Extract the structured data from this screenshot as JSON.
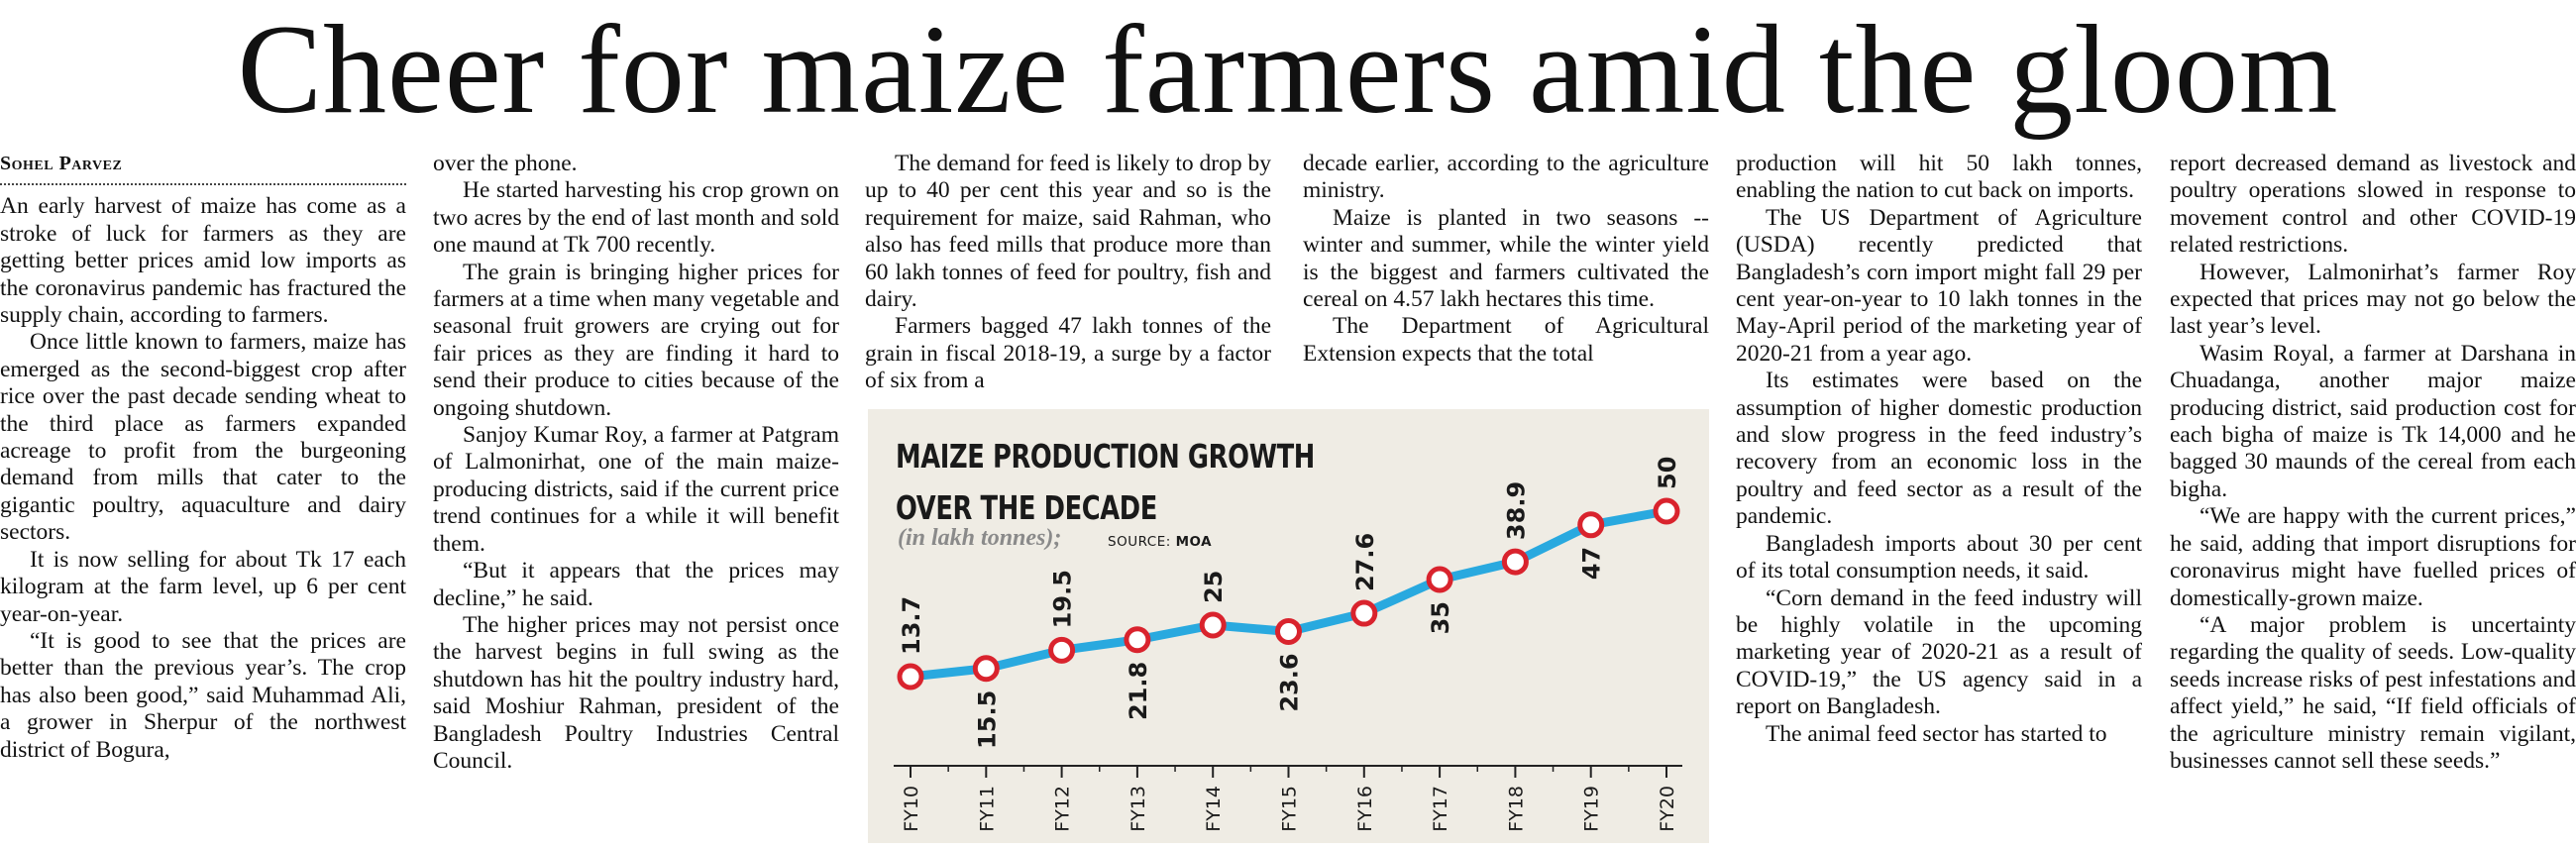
{
  "headline": "Cheer for maize farmers amid the gloom",
  "byline": "Sohel Parvez",
  "columns": {
    "col1": [
      "An early harvest of maize has come as a stroke of luck for farmers as they are getting better prices amid low imports as the coronavirus pandemic has fractured the supply chain, according to farmers.",
      "Once little known to farmers, maize has emerged as the second-biggest crop after rice over the past decade sending wheat to the third place as farmers expanded acreage to profit from the burgeoning demand from mills that cater to the gigantic poultry, aquaculture and dairy sectors.",
      "It is now selling for about Tk 17 each kilogram at the farm level, up 6 per cent year-on-year.",
      "“It is good to see that the prices are better than the previous year’s. The crop has also been good,” said Muhammad Ali, a grower in Sherpur of the northwest district of Bogura,"
    ],
    "col2": [
      "over the phone.",
      "He started harvesting his crop grown on two acres by the end of last month and sold one maund at Tk 700 recently.",
      "The grain is bringing higher prices for farmers at a time when many vegetable and seasonal fruit growers are crying out for fair prices as they are finding it hard to send their produce to cities because of the ongoing shutdown.",
      "Sanjoy Kumar Roy, a farmer at Patgram of Lalmonirhat, one of the main maize-producing districts, said if the current price trend continues for a while it will benefit them.",
      "“But it appears that the prices may decline,” he said.",
      "The higher prices may not persist once the harvest begins in full swing as the shutdown has hit the poultry industry hard, said Moshiur Rahman, president of the Bangladesh Poultry Industries Central Council."
    ],
    "col3": [
      "The demand for feed is likely to drop by up to 40 per cent this year and so is the requirement for maize, said Rahman, who also has feed mills that produce more than 60 lakh tonnes of feed for poultry, fish and dairy.",
      "Farmers bagged 47 lakh tonnes of the grain in fiscal 2018-19, a surge by a factor of six from a"
    ],
    "col4": [
      "decade earlier, according to the agriculture ministry.",
      "Maize is planted in two seasons -- winter and summer, while the winter yield is the biggest and farmers cultivated the cereal on 4.57 lakh hectares this time.",
      "The Department of Agricultural Extension expects that the total"
    ],
    "col5": [
      "production will hit 50 lakh tonnes, enabling the nation to cut back on imports.",
      "The US Department of Agriculture (USDA) recently predicted that Bangladesh’s corn import might fall 29 per cent year-on-year to 10 lakh tonnes in the May-April period of the marketing year of 2020-21 from a year ago.",
      "Its estimates were based on the assumption of higher domestic production and slow progress in the feed industry’s recovery from an economic loss in the poultry and feed sector as a result of the pandemic.",
      "Bangladesh imports about 30 per cent of its total consumption needs, it said.",
      "“Corn demand in the feed industry will be highly volatile in the upcoming marketing year of 2020-21 as a result of COVID-19,” the US agency said in a report on Bangladesh.",
      "The animal feed sector has started to"
    ],
    "col6": [
      "report decreased demand as livestock and poultry operations slowed in response to movement control and other COVID-19 related restrictions.",
      "However, Lalmonirhat’s farmer Roy expected that prices may not go below the last year’s level.",
      "Wasim Royal, a farmer at Darshana in Chuadanga, another major maize producing district, said production cost for each bigha of maize is Tk 14,000 and he bagged 30 maunds of the cereal from each bigha.",
      "“We are happy with the current prices,” he said, adding that import disruptions for coronavirus might have fuelled prices of domestically-grown maize.",
      "“A major problem is uncertainty regarding the quality of seeds. Low-quality seeds increase risks of pest infestations and affect yield,” he said, “If field officials of the agriculture ministry remain vigilant, businesses cannot sell these seeds.”"
    ]
  },
  "chart": {
    "title_line1": "MAIZE PRODUCTION GROWTH",
    "title_line2": "OVER THE DECADE",
    "unit": "(in lakh tonnes);",
    "source_label": "SOURCE:",
    "source_value": "MOA"
  },
  "chart_data": {
    "type": "line",
    "title": "MAIZE PRODUCTION GROWTH OVER THE DECADE",
    "unit": "(in lakh tonnes)",
    "source": "MOA",
    "categories": [
      "FY10",
      "FY11",
      "FY12",
      "FY13",
      "FY14",
      "FY15",
      "FY16",
      "FY17",
      "FY18",
      "FY19",
      "FY20"
    ],
    "values": [
      13.7,
      15.5,
      19.5,
      21.8,
      25,
      23.6,
      27.6,
      35,
      38.9,
      47,
      50
    ],
    "value_labels": [
      "13.7",
      "15.5",
      "19.5",
      "21.8",
      "25",
      "23.6",
      "27.6",
      "35",
      "38.9",
      "47",
      "50"
    ],
    "label_side": [
      "above",
      "below",
      "above",
      "below",
      "above",
      "below",
      "above",
      "below",
      "above",
      "below",
      "above"
    ],
    "line_color": "#29a9df",
    "marker_edge_color": "#d9232d",
    "marker_fill_color": "#ffffff",
    "background_color": "#efece4",
    "grid": false,
    "legend": "none"
  }
}
